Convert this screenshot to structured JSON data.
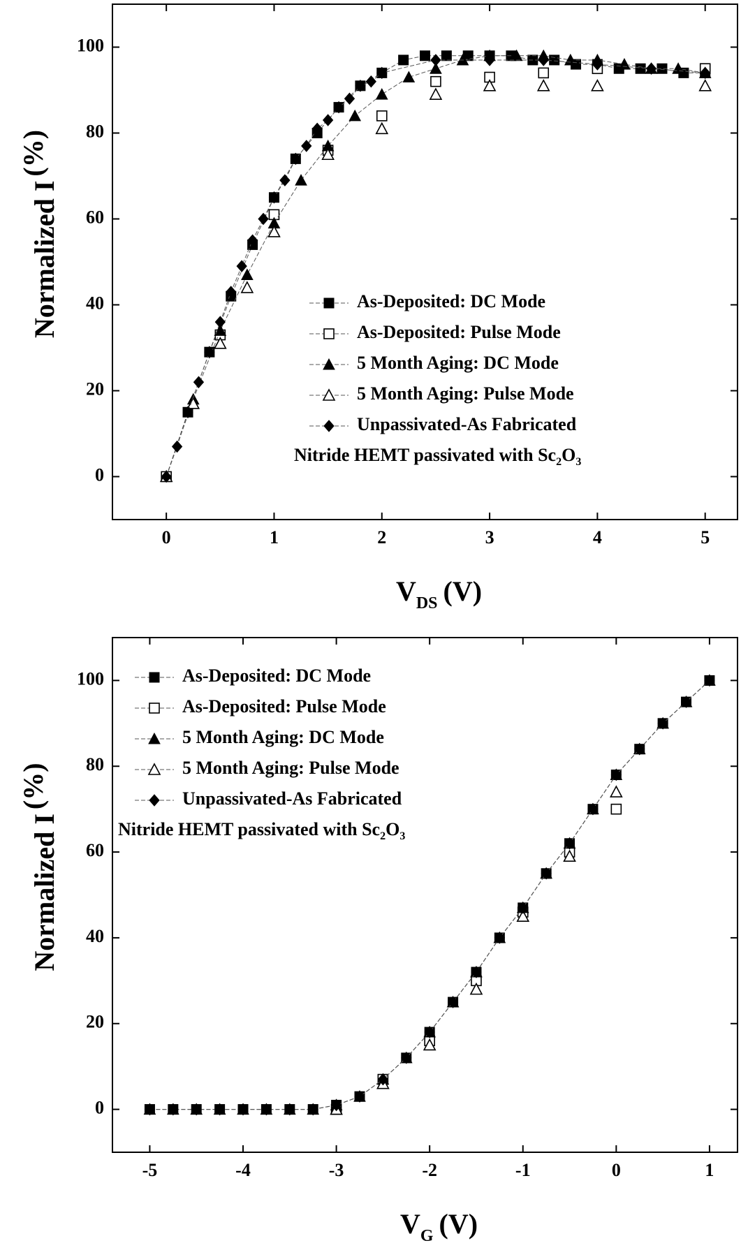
{
  "chart_data": [
    {
      "type": "scatter",
      "xlabel": {
        "main": "V",
        "sub": "DS",
        "unit": "(V)"
      },
      "ylabel": {
        "main": "Normalized I",
        "unit": "(%)"
      },
      "xlim": [
        -0.5,
        5.3
      ],
      "xticks": [
        0,
        1,
        2,
        3,
        4,
        5
      ],
      "ylim": [
        -10,
        110
      ],
      "yticks": [
        0,
        20,
        40,
        60,
        80,
        100
      ],
      "legend": "lower right",
      "annotation": {
        "text": "Nitride HEMT passivated with Sc",
        "sub1": "2",
        "mid": "O",
        "sub2": "3"
      },
      "series": [
        {
          "name": "As-Deposited: DC Mode",
          "color": "#000000",
          "marker": "square",
          "line": true,
          "x": [
            0,
            0.2,
            0.4,
            0.6,
            0.8,
            1.0,
            1.2,
            1.4,
            1.6,
            1.8,
            2.0,
            2.2,
            2.4,
            2.6,
            2.8,
            3.0,
            3.2,
            3.4,
            3.6,
            3.8,
            4.0,
            4.2,
            4.4,
            4.6,
            4.8,
            5.0
          ],
          "values": [
            0,
            15,
            29,
            42,
            54,
            65,
            74,
            80,
            86,
            91,
            94,
            97,
            98,
            98,
            98,
            98,
            98,
            97,
            97,
            96,
            96,
            95,
            95,
            95,
            94,
            94
          ]
        },
        {
          "name": "As-Deposited: Pulse Mode",
          "color": "#000000",
          "marker": "square-open",
          "line": false,
          "x": [
            0,
            0.5,
            1,
            1.5,
            2,
            2.5,
            3,
            3.5,
            4,
            5
          ],
          "values": [
            0,
            33,
            61,
            76,
            84,
            92,
            93,
            94,
            95,
            95
          ]
        },
        {
          "name": "5 Month Aging: DC Mode",
          "color": "#000000",
          "marker": "triangle",
          "line": true,
          "x": [
            0,
            0.25,
            0.5,
            0.75,
            1,
            1.25,
            1.5,
            1.75,
            2,
            2.25,
            2.5,
            2.75,
            3,
            3.25,
            3.5,
            3.75,
            4,
            4.25,
            4.5,
            4.75,
            5
          ],
          "values": [
            0,
            18,
            34,
            47,
            59,
            69,
            77,
            84,
            89,
            93,
            95,
            97,
            98,
            98,
            98,
            97,
            97,
            96,
            95,
            95,
            94
          ]
        },
        {
          "name": "5 Month Aging: Pulse Mode",
          "color": "#000000",
          "marker": "triangle-open",
          "line": false,
          "x": [
            0,
            0.25,
            0.5,
            0.75,
            1,
            1.5,
            2,
            2.5,
            3,
            3.5,
            4,
            5
          ],
          "values": [
            0,
            17,
            31,
            44,
            57,
            75,
            81,
            89,
            91,
            91,
            91,
            91
          ]
        },
        {
          "name": "Unpassivated-As Fabricated",
          "color": "#000000",
          "marker": "diamond",
          "line": true,
          "x": [
            0,
            0.1,
            0.2,
            0.3,
            0.4,
            0.5,
            0.6,
            0.7,
            0.8,
            0.9,
            1.0,
            1.1,
            1.2,
            1.3,
            1.4,
            1.5,
            1.6,
            1.7,
            1.8,
            1.9,
            2.0,
            2.5,
            3,
            3.5,
            4,
            4.5,
            5
          ],
          "values": [
            0,
            7,
            15,
            22,
            29,
            36,
            43,
            49,
            55,
            60,
            65,
            69,
            74,
            77,
            81,
            83,
            86,
            88,
            91,
            92,
            94,
            97,
            97,
            97,
            96,
            95,
            94
          ]
        }
      ]
    },
    {
      "type": "scatter",
      "xlabel": {
        "main": "V",
        "sub": "G",
        "unit": "(V)"
      },
      "ylabel": {
        "main": "Normalized I",
        "unit": "(%)"
      },
      "xlim": [
        -5.4,
        1.3
      ],
      "xticks": [
        -5,
        -4,
        -3,
        -2,
        -1,
        0,
        1
      ],
      "ylim": [
        -10,
        110
      ],
      "yticks": [
        0,
        20,
        40,
        60,
        80,
        100
      ],
      "legend": "upper left",
      "annotation": {
        "text": "Nitride HEMT passivated with Sc",
        "sub1": "2",
        "mid": "O",
        "sub2": "3"
      },
      "series": [
        {
          "name": "As-Deposited: DC Mode",
          "color": "#000000",
          "marker": "square",
          "line": true,
          "x": [
            -5,
            -4.75,
            -4.5,
            -4.25,
            -4,
            -3.75,
            -3.5,
            -3.25,
            -3,
            -2.75,
            -2.5,
            -2.25,
            -2,
            -1.75,
            -1.5,
            -1.25,
            -1,
            -0.75,
            -0.5,
            -0.25,
            0,
            0.25,
            0.5,
            0.75,
            1
          ],
          "values": [
            0,
            0,
            0,
            0,
            0,
            0,
            0,
            0,
            1,
            3,
            7,
            12,
            18,
            25,
            32,
            40,
            47,
            55,
            62,
            70,
            78,
            84,
            90,
            95,
            100
          ]
        },
        {
          "name": "As-Deposited: Pulse Mode",
          "color": "#000000",
          "marker": "square-open",
          "line": false,
          "x": [
            -3,
            -2.5,
            -2,
            -1.5,
            -1,
            -0.5,
            0
          ],
          "values": [
            0,
            7,
            16,
            30,
            46,
            60,
            70
          ]
        },
        {
          "name": "5 Month Aging: DC Mode",
          "color": "#000000",
          "marker": "triangle",
          "line": true,
          "x": [
            -5,
            -4.75,
            -4.5,
            -4.25,
            -4,
            -3.75,
            -3.5,
            -3.25,
            -3,
            -2.75,
            -2.5,
            -2.25,
            -2,
            -1.75,
            -1.5,
            -1.25,
            -1,
            -0.75,
            -0.5,
            -0.25,
            0,
            0.25,
            0.5,
            0.75,
            1
          ],
          "values": [
            0,
            0,
            0,
            0,
            0,
            0,
            0,
            0,
            1,
            3,
            7,
            12,
            18,
            25,
            32,
            40,
            47,
            55,
            62,
            70,
            78,
            84,
            90,
            95,
            100
          ]
        },
        {
          "name": "5 Month Aging: Pulse Mode",
          "color": "#000000",
          "marker": "triangle-open",
          "line": false,
          "x": [
            -3,
            -2.5,
            -2,
            -1.5,
            -1,
            -0.5,
            0
          ],
          "values": [
            0,
            6,
            15,
            28,
            45,
            59,
            74
          ]
        },
        {
          "name": "Unpassivated-As Fabricated",
          "color": "#000000",
          "marker": "diamond",
          "line": true,
          "x": [
            -5,
            -4.75,
            -4.5,
            -4.25,
            -4,
            -3.75,
            -3.5,
            -3.25,
            -3,
            -2.75,
            -2.5,
            -2.25,
            -2,
            -1.75,
            -1.5,
            -1.25,
            -1,
            -0.75,
            -0.5,
            -0.25,
            0,
            0.25,
            0.5,
            0.75,
            1
          ],
          "values": [
            0,
            0,
            0,
            0,
            0,
            0,
            0,
            0,
            1,
            3,
            7,
            12,
            18,
            25,
            32,
            40,
            47,
            55,
            62,
            70,
            78,
            84,
            90,
            95,
            100
          ]
        }
      ]
    }
  ]
}
